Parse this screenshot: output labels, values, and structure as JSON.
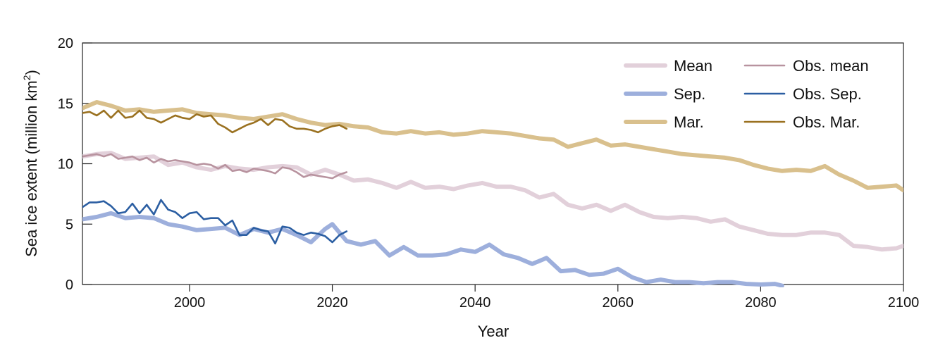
{
  "chart_data": {
    "type": "line",
    "xlabel": "Year",
    "ylabel": "Sea ice extent (million km",
    "ylabel_sup": "2",
    "ylabel_close": ")",
    "xlim": [
      1985,
      2100
    ],
    "ylim": [
      0,
      20
    ],
    "x_ticks": [
      2000,
      2020,
      2040,
      2060,
      2080,
      2100
    ],
    "y_ticks": [
      0,
      5,
      10,
      15,
      20
    ],
    "grid": false,
    "legend_position": "top-right",
    "series": [
      {
        "name": "Mean",
        "color": "#e2d0da",
        "style": "thick",
        "x": [
          1985,
          1987,
          1989,
          1991,
          1993,
          1995,
          1997,
          1999,
          2001,
          2003,
          2005,
          2007,
          2009,
          2011,
          2013,
          2015,
          2017,
          2019,
          2021,
          2023,
          2025,
          2027,
          2029,
          2031,
          2033,
          2035,
          2037,
          2039,
          2041,
          2043,
          2045,
          2047,
          2049,
          2051,
          2053,
          2055,
          2057,
          2059,
          2061,
          2063,
          2065,
          2067,
          2069,
          2071,
          2073,
          2075,
          2077,
          2079,
          2081,
          2083,
          2085,
          2087,
          2089,
          2091,
          2093,
          2095,
          2097,
          2099,
          2100
        ],
        "y": [
          10.6,
          10.8,
          10.9,
          10.4,
          10.5,
          10.6,
          9.9,
          10.1,
          9.7,
          9.5,
          9.8,
          9.6,
          9.5,
          9.7,
          9.8,
          9.7,
          9.1,
          9.5,
          9.1,
          8.6,
          8.7,
          8.4,
          8.0,
          8.5,
          8.0,
          8.1,
          7.9,
          8.2,
          8.4,
          8.1,
          8.1,
          7.8,
          7.2,
          7.5,
          6.6,
          6.3,
          6.6,
          6.1,
          6.6,
          6.0,
          5.6,
          5.5,
          5.6,
          5.5,
          5.2,
          5.4,
          4.8,
          4.5,
          4.2,
          4.1,
          4.1,
          4.3,
          4.3,
          4.1,
          3.2,
          3.1,
          2.9,
          3.0,
          3.2
        ]
      },
      {
        "name": "Sep.",
        "color": "#9dafdc",
        "style": "thick",
        "x": [
          1985,
          1987,
          1989,
          1991,
          1993,
          1995,
          1997,
          1999,
          2001,
          2003,
          2005,
          2007,
          2009,
          2011,
          2013,
          2015,
          2017,
          2019,
          2020,
          2022,
          2024,
          2026,
          2028,
          2030,
          2032,
          2034,
          2036,
          2038,
          2040,
          2042,
          2044,
          2046,
          2048,
          2050,
          2052,
          2054,
          2056,
          2058,
          2060,
          2062,
          2064,
          2066,
          2068,
          2070,
          2072,
          2074,
          2076,
          2078,
          2080,
          2082,
          2083
        ],
        "y": [
          5.4,
          5.6,
          5.9,
          5.5,
          5.6,
          5.5,
          5.0,
          4.8,
          4.5,
          4.6,
          4.7,
          4.1,
          4.6,
          4.3,
          4.6,
          4.1,
          3.5,
          4.6,
          5.0,
          3.6,
          3.3,
          3.6,
          2.4,
          3.1,
          2.4,
          2.4,
          2.5,
          2.9,
          2.7,
          3.3,
          2.5,
          2.2,
          1.7,
          2.2,
          1.1,
          1.2,
          0.8,
          0.9,
          1.3,
          0.6,
          0.2,
          0.4,
          0.2,
          0.2,
          0.1,
          0.2,
          0.2,
          0.05,
          0.0,
          0.05,
          -0.1
        ]
      },
      {
        "name": "Mar.",
        "color": "#d9c08d",
        "style": "thick",
        "x": [
          1985,
          1987,
          1989,
          1991,
          1993,
          1995,
          1997,
          1999,
          2001,
          2003,
          2005,
          2007,
          2009,
          2011,
          2013,
          2015,
          2017,
          2019,
          2021,
          2023,
          2025,
          2027,
          2029,
          2031,
          2033,
          2035,
          2037,
          2039,
          2041,
          2043,
          2045,
          2047,
          2049,
          2051,
          2053,
          2055,
          2057,
          2059,
          2061,
          2063,
          2065,
          2067,
          2069,
          2071,
          2073,
          2075,
          2077,
          2079,
          2081,
          2083,
          2085,
          2087,
          2089,
          2091,
          2093,
          2095,
          2097,
          2099,
          2100
        ],
        "y": [
          14.6,
          15.1,
          14.8,
          14.4,
          14.5,
          14.3,
          14.4,
          14.5,
          14.2,
          14.1,
          14.0,
          13.8,
          13.7,
          13.9,
          14.1,
          13.7,
          13.4,
          13.2,
          13.3,
          13.1,
          13.0,
          12.6,
          12.5,
          12.7,
          12.5,
          12.6,
          12.4,
          12.5,
          12.7,
          12.6,
          12.5,
          12.3,
          12.1,
          12.0,
          11.4,
          11.7,
          12.0,
          11.5,
          11.6,
          11.4,
          11.2,
          11.0,
          10.8,
          10.7,
          10.6,
          10.5,
          10.3,
          9.9,
          9.6,
          9.4,
          9.5,
          9.4,
          9.8,
          9.1,
          8.6,
          8.0,
          8.1,
          8.2,
          7.8
        ]
      },
      {
        "name": "Obs. mean",
        "color": "#b8939f",
        "style": "thin",
        "x": [
          1985,
          1986,
          1987,
          1988,
          1989,
          1990,
          1991,
          1992,
          1993,
          1994,
          1995,
          1996,
          1997,
          1998,
          1999,
          2000,
          2001,
          2002,
          2003,
          2004,
          2005,
          2006,
          2007,
          2008,
          2009,
          2010,
          2011,
          2012,
          2013,
          2014,
          2015,
          2016,
          2017,
          2018,
          2019,
          2020,
          2021,
          2022
        ],
        "y": [
          10.6,
          10.7,
          10.8,
          10.6,
          10.8,
          10.4,
          10.5,
          10.6,
          10.3,
          10.5,
          10.1,
          10.4,
          10.2,
          10.3,
          10.2,
          10.1,
          9.9,
          10.0,
          9.9,
          9.6,
          9.9,
          9.4,
          9.5,
          9.3,
          9.6,
          9.5,
          9.4,
          9.2,
          9.7,
          9.6,
          9.3,
          8.9,
          9.1,
          9.0,
          8.9,
          8.8,
          9.1,
          9.3
        ]
      },
      {
        "name": "Obs. Sep.",
        "color": "#2b5ea2",
        "style": "thin",
        "x": [
          1985,
          1986,
          1987,
          1988,
          1989,
          1990,
          1991,
          1992,
          1993,
          1994,
          1995,
          1996,
          1997,
          1998,
          1999,
          2000,
          2001,
          2002,
          2003,
          2004,
          2005,
          2006,
          2007,
          2008,
          2009,
          2010,
          2011,
          2012,
          2013,
          2014,
          2015,
          2016,
          2017,
          2018,
          2019,
          2020,
          2021,
          2022
        ],
        "y": [
          6.4,
          6.8,
          6.8,
          6.9,
          6.5,
          5.9,
          6.0,
          6.7,
          5.9,
          6.6,
          5.8,
          7.0,
          6.2,
          6.0,
          5.5,
          5.9,
          6.0,
          5.4,
          5.5,
          5.5,
          4.9,
          5.3,
          4.1,
          4.1,
          4.7,
          4.5,
          4.4,
          3.4,
          4.8,
          4.7,
          4.3,
          4.1,
          4.3,
          4.2,
          4.0,
          3.5,
          4.1,
          4.4
        ]
      },
      {
        "name": "Obs. Mar.",
        "color": "#9a7120",
        "style": "thin",
        "x": [
          1985,
          1986,
          1987,
          1988,
          1989,
          1990,
          1991,
          1992,
          1993,
          1994,
          1995,
          1996,
          1997,
          1998,
          1999,
          2000,
          2001,
          2002,
          2003,
          2004,
          2005,
          2006,
          2007,
          2008,
          2009,
          2010,
          2011,
          2012,
          2013,
          2014,
          2015,
          2016,
          2017,
          2018,
          2019,
          2020,
          2021,
          2022
        ],
        "y": [
          14.2,
          14.3,
          14.0,
          14.4,
          13.8,
          14.4,
          13.8,
          13.9,
          14.4,
          13.8,
          13.7,
          13.4,
          13.7,
          14.0,
          13.8,
          13.7,
          14.1,
          13.9,
          14.0,
          13.3,
          13.0,
          12.6,
          12.9,
          13.2,
          13.4,
          13.7,
          13.2,
          13.7,
          13.6,
          13.1,
          12.9,
          12.9,
          12.8,
          12.6,
          12.9,
          13.1,
          13.2,
          12.9
        ]
      }
    ]
  }
}
